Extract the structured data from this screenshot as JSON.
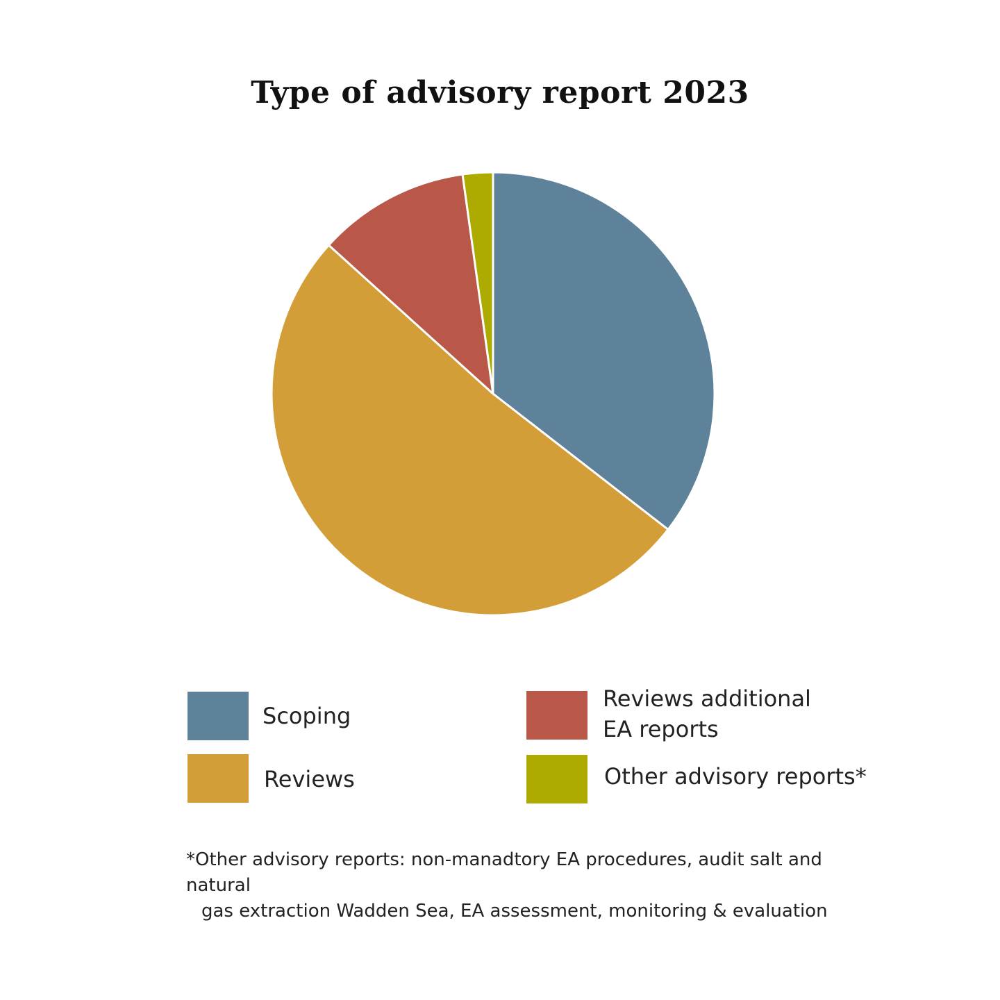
{
  "chart_data": {
    "type": "pie",
    "title": "Type of advisory report 2023",
    "slices": [
      {
        "name": "Scoping",
        "value": 35.5,
        "color": "#5e8299"
      },
      {
        "name": "Reviews",
        "value": 51.2,
        "color": "#d39d37"
      },
      {
        "name": "Reviews additional EA reports",
        "value": 11.1,
        "color": "#b95849"
      },
      {
        "name": "Other advisory reports*",
        "value": 2.2,
        "color": "#aeab00"
      }
    ],
    "start_angle": "12 o'clock",
    "direction": "clockwise",
    "legend": {
      "placement": "bottom",
      "items": [
        {
          "label": "Scoping",
          "color": "#5e8299"
        },
        {
          "label": "Reviews",
          "color": "#d39d37"
        },
        {
          "label": "Reviews additional\nEA reports",
          "color": "#b95849"
        },
        {
          "label": "Other advisory reports*",
          "color": "#aeab00"
        }
      ]
    },
    "footnote": {
      "line1": "*Other advisory reports: non-manadtory EA procedures, audit salt and natural",
      "line2": "gas extraction Wadden Sea, EA assessment, monitoring & evaluation"
    }
  }
}
